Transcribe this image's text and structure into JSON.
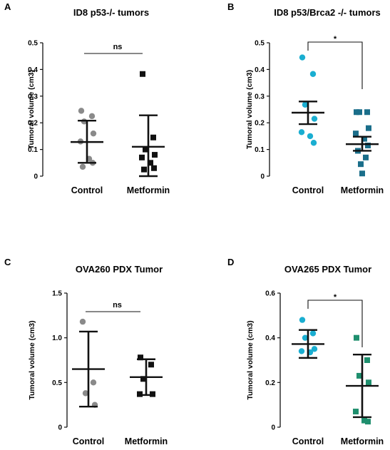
{
  "chart_data": [
    {
      "type": "scatter",
      "panel": "A",
      "title": "ID8 p53-/- tumors",
      "ylabel": "Tumoral volume (cm3)",
      "categories": [
        "Control",
        "Metformin"
      ],
      "ylim": [
        0,
        0.5
      ],
      "yticks": [
        0,
        0.1,
        0.2,
        0.3,
        0.4,
        0.5
      ],
      "ytick_labels": [
        "0",
        "0.1",
        "0.2",
        "0.3",
        "0.4",
        "0.5"
      ],
      "significance": "ns",
      "series": [
        {
          "category": "Control",
          "color": "#8a8a8a",
          "marker": "circle",
          "values": [
            0.245,
            0.225,
            0.205,
            0.16,
            0.13,
            0.065,
            0.05,
            0.035
          ],
          "mean": 0.128,
          "error_low": 0.05,
          "error_high": 0.208
        },
        {
          "category": "Metformin",
          "color": "#111111",
          "marker": "square",
          "values": [
            0.383,
            0.145,
            0.1,
            0.08,
            0.07,
            0.05,
            0.03,
            0.025
          ],
          "mean": 0.11,
          "error_low": 0.0,
          "error_high": 0.228
        }
      ]
    },
    {
      "type": "scatter",
      "panel": "B",
      "title": "ID8 p53/Brca2 -/- tumors",
      "ylabel": "Tumoral volume (cm3)",
      "categories": [
        "Control",
        "Metformin"
      ],
      "ylim": [
        0,
        0.5
      ],
      "yticks": [
        0,
        0.1,
        0.2,
        0.3,
        0.4,
        0.5
      ],
      "ytick_labels": [
        "0",
        "0.1",
        "0.2",
        "0.3",
        "0.4",
        "0.5"
      ],
      "significance": "*",
      "series": [
        {
          "category": "Control",
          "color": "#1aaed1",
          "marker": "circle",
          "values": [
            0.445,
            0.383,
            0.268,
            0.215,
            0.165,
            0.15,
            0.125
          ],
          "mean": 0.238,
          "error_low": 0.195,
          "error_high": 0.28
        },
        {
          "category": "Metformin",
          "color": "#1a6e8a",
          "marker": "square",
          "values": [
            0.24,
            0.24,
            0.24,
            0.18,
            0.16,
            0.14,
            0.115,
            0.095,
            0.07,
            0.045,
            0.01
          ],
          "mean": 0.12,
          "error_low": 0.095,
          "error_high": 0.148
        }
      ]
    },
    {
      "type": "scatter",
      "panel": "C",
      "title": "OVA260 PDX Tumor",
      "ylabel": "Tumoral volume (cm3)",
      "categories": [
        "Control",
        "Metformin"
      ],
      "ylim": [
        0,
        1.5
      ],
      "yticks": [
        0,
        0.5,
        1.0,
        1.5
      ],
      "ytick_labels": [
        "0",
        "0.5",
        "1.0",
        "1.5"
      ],
      "significance": "ns",
      "series": [
        {
          "category": "Control",
          "color": "#8a8a8a",
          "marker": "circle",
          "values": [
            1.18,
            0.5,
            0.38,
            0.25
          ],
          "mean": 0.65,
          "error_low": 0.23,
          "error_high": 1.07
        },
        {
          "category": "Metformin",
          "color": "#111111",
          "marker": "square",
          "values": [
            0.78,
            0.7,
            0.54,
            0.37,
            0.37
          ],
          "mean": 0.56,
          "error_low": 0.36,
          "error_high": 0.76
        }
      ]
    },
    {
      "type": "scatter",
      "panel": "D",
      "title": "OVA265 PDX Tumor",
      "ylabel": "Tumoral volume (cm3)",
      "categories": [
        "Control",
        "Metformin"
      ],
      "ylim": [
        0,
        0.6
      ],
      "yticks": [
        0,
        0.2,
        0.4,
        0.6
      ],
      "ytick_labels": [
        "0",
        "0.2",
        "0.4",
        "0.6"
      ],
      "significance": "*",
      "series": [
        {
          "category": "Control",
          "color": "#1aaed1",
          "marker": "circle",
          "values": [
            0.48,
            0.42,
            0.4,
            0.35,
            0.34,
            0.335
          ],
          "mean": 0.372,
          "error_low": 0.31,
          "error_high": 0.435
        },
        {
          "category": "Metformin",
          "color": "#1f8f6e",
          "marker": "square",
          "values": [
            0.4,
            0.3,
            0.23,
            0.2,
            0.07,
            0.03,
            0.025
          ],
          "mean": 0.185,
          "error_low": 0.045,
          "error_high": 0.325
        }
      ]
    }
  ]
}
